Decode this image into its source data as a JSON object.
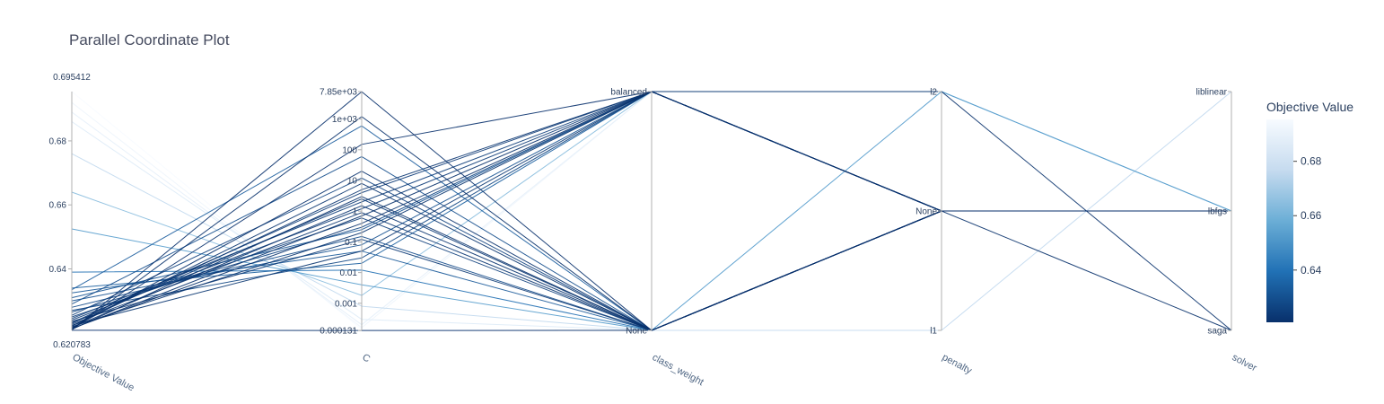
{
  "chart_data": {
    "type": "parallel_coordinates",
    "title": "Parallel Coordinate Plot",
    "colorscale": [
      "#08306b",
      "#2171b5",
      "#6baed6",
      "#c6dbef",
      "#f7fbff"
    ],
    "colorbar": {
      "title": "Objective Value",
      "range": [
        0.620783,
        0.695412
      ],
      "ticks": [
        "0.64",
        "0.66",
        "0.68"
      ],
      "tick_values": [
        0.64,
        0.66,
        0.68
      ]
    },
    "dimensions": [
      {
        "label": "Objective Value",
        "scale": "linear",
        "range": [
          0.620783,
          0.695412
        ],
        "tick_values": [
          0.620783,
          0.64,
          0.66,
          0.68,
          0.695412
        ],
        "tick_labels": [
          "0.620783",
          "0.64",
          "0.66",
          "0.68",
          "0.695412"
        ]
      },
      {
        "label": "C",
        "scale": "log",
        "range": [
          0.000131,
          7850
        ],
        "tick_values": [
          0.000131,
          0.001,
          0.01,
          0.1,
          1,
          10,
          100,
          1000,
          7850
        ],
        "tick_labels": [
          "0.000131",
          "0.001",
          "0.01",
          "0.1",
          "1",
          "10",
          "100",
          "1e+03",
          "7.85e+03"
        ]
      },
      {
        "label": "class_weight",
        "scale": "category",
        "categories": [
          "None",
          "balanced"
        ]
      },
      {
        "label": "penalty",
        "scale": "category",
        "categories": [
          "l1",
          "None",
          "l2"
        ]
      },
      {
        "label": "solver",
        "scale": "category",
        "categories": [
          "saga",
          "lbfgs",
          "liblinear"
        ]
      }
    ],
    "trials": [
      {
        "objective": 0.6954,
        "C": 0.00014,
        "class_weight": "None",
        "penalty": "l1",
        "solver": "liblinear"
      },
      {
        "objective": 0.692,
        "C": 0.00016,
        "class_weight": "balanced",
        "penalty": "l2",
        "solver": "lbfgs"
      },
      {
        "objective": 0.689,
        "C": 0.0002,
        "class_weight": "balanced",
        "penalty": "l2",
        "solver": "lbfgs"
      },
      {
        "objective": 0.686,
        "C": 0.0003,
        "class_weight": "None",
        "penalty": "l2",
        "solver": "lbfgs"
      },
      {
        "objective": 0.676,
        "C": 0.0008,
        "class_weight": "None",
        "penalty": "l1",
        "solver": "liblinear"
      },
      {
        "objective": 0.664,
        "C": 0.0018,
        "class_weight": "balanced",
        "penalty": "l2",
        "solver": "lbfgs"
      },
      {
        "objective": 0.6525,
        "C": 0.004,
        "class_weight": "None",
        "penalty": "l2",
        "solver": "lbfgs"
      },
      {
        "objective": 0.639,
        "C": 0.012,
        "class_weight": "None",
        "penalty": "None",
        "solver": "lbfgs"
      },
      {
        "objective": 0.634,
        "C": 0.02,
        "class_weight": "balanced",
        "penalty": "None",
        "solver": "lbfgs"
      },
      {
        "objective": 0.6325,
        "C": 0.05,
        "class_weight": "None",
        "penalty": "None",
        "solver": "lbfgs"
      },
      {
        "objective": 0.63,
        "C": 0.08,
        "class_weight": "balanced",
        "penalty": "None",
        "solver": "lbfgs"
      },
      {
        "objective": 0.628,
        "C": 0.15,
        "class_weight": "None",
        "penalty": "None",
        "solver": "lbfgs"
      },
      {
        "objective": 0.6265,
        "C": 0.3,
        "class_weight": "balanced",
        "penalty": "None",
        "solver": "lbfgs"
      },
      {
        "objective": 0.625,
        "C": 0.6,
        "class_weight": "None",
        "penalty": "None",
        "solver": "lbfgs"
      },
      {
        "objective": 0.624,
        "C": 1.2,
        "class_weight": "balanced",
        "penalty": "None",
        "solver": "lbfgs"
      },
      {
        "objective": 0.623,
        "C": 2.5,
        "class_weight": "None",
        "penalty": "None",
        "solver": "lbfgs"
      },
      {
        "objective": 0.6222,
        "C": 5,
        "class_weight": "balanced",
        "penalty": "None",
        "solver": "lbfgs"
      },
      {
        "objective": 0.6215,
        "C": 20,
        "class_weight": "None",
        "penalty": "None",
        "solver": "lbfgs"
      },
      {
        "objective": 0.6212,
        "C": 150,
        "class_weight": "balanced",
        "penalty": "None",
        "solver": "lbfgs"
      },
      {
        "objective": 0.621,
        "C": 1200,
        "class_weight": "None",
        "penalty": "None",
        "solver": "lbfgs"
      },
      {
        "objective": 0.6209,
        "C": 7800,
        "class_weight": "None",
        "penalty": "None",
        "solver": "lbfgs"
      },
      {
        "objective": 0.6208,
        "C": 0.00013,
        "class_weight": "None",
        "penalty": "None",
        "solver": "lbfgs"
      },
      {
        "objective": 0.6213,
        "C": 0.7,
        "class_weight": "balanced",
        "penalty": "l2",
        "solver": "saga"
      },
      {
        "objective": 0.6211,
        "C": 3,
        "class_weight": "None",
        "penalty": "None",
        "solver": "saga"
      },
      {
        "objective": 0.6214,
        "C": 0.4,
        "class_weight": "balanced",
        "penalty": "None",
        "solver": "lbfgs"
      },
      {
        "objective": 0.6217,
        "C": 1.5,
        "class_weight": "None",
        "penalty": "None",
        "solver": "lbfgs"
      },
      {
        "objective": 0.6219,
        "C": 0.2,
        "class_weight": "balanced",
        "penalty": "None",
        "solver": "lbfgs"
      },
      {
        "objective": 0.6221,
        "C": 8,
        "class_weight": "None",
        "penalty": "None",
        "solver": "lbfgs"
      },
      {
        "objective": 0.6224,
        "C": 0.05,
        "class_weight": "balanced",
        "penalty": "None",
        "solver": "lbfgs"
      },
      {
        "objective": 0.6227,
        "C": 0.9,
        "class_weight": "None",
        "penalty": "None",
        "solver": "lbfgs"
      },
      {
        "objective": 0.6232,
        "C": 4,
        "class_weight": "balanced",
        "penalty": "None",
        "solver": "lbfgs"
      },
      {
        "objective": 0.6236,
        "C": 0.12,
        "class_weight": "None",
        "penalty": "None",
        "solver": "lbfgs"
      },
      {
        "objective": 0.6245,
        "C": 2,
        "class_weight": "balanced",
        "penalty": "None",
        "solver": "lbfgs"
      },
      {
        "objective": 0.6255,
        "C": 12,
        "class_weight": "None",
        "penalty": "None",
        "solver": "lbfgs"
      },
      {
        "objective": 0.627,
        "C": 0.03,
        "class_weight": "balanced",
        "penalty": "None",
        "solver": "lbfgs"
      },
      {
        "objective": 0.629,
        "C": 60,
        "class_weight": "None",
        "penalty": "None",
        "solver": "lbfgs"
      },
      {
        "objective": 0.631,
        "C": 0.25,
        "class_weight": "balanced",
        "penalty": "None",
        "solver": "lbfgs"
      },
      {
        "objective": 0.6335,
        "C": 600,
        "class_weight": "None",
        "penalty": "None",
        "solver": "lbfgs"
      }
    ]
  }
}
